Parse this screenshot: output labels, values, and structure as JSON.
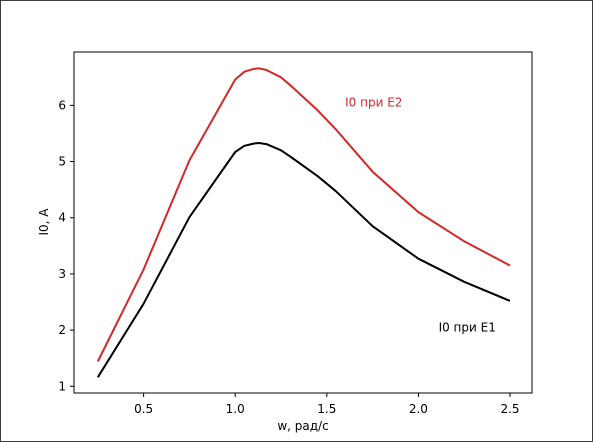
{
  "chart_data": {
    "type": "line",
    "title": "",
    "xlabel": "w, рад/с",
    "ylabel": "I0, A",
    "xlim": [
      0.12,
      2.62
    ],
    "ylim": [
      0.88,
      6.95
    ],
    "xticks": [
      0.5,
      1.0,
      1.5,
      2.0,
      2.5
    ],
    "xtick_labels": [
      "0.5",
      "1.0",
      "1.5",
      "2.0",
      "2.5"
    ],
    "yticks": [
      1,
      2,
      3,
      4,
      5,
      6
    ],
    "ytick_labels": [
      "1",
      "2",
      "3",
      "4",
      "5",
      "6"
    ],
    "grid": false,
    "series": [
      {
        "name": "I0 при E1",
        "color": "#000000",
        "label_at": [
          2.11,
          2.05
        ],
        "x": [
          0.25,
          0.5,
          0.75,
          1.0,
          1.05,
          1.1,
          1.13,
          1.17,
          1.25,
          1.3,
          1.45,
          1.55,
          1.75,
          2.0,
          2.25,
          2.5
        ],
        "y": [
          1.16,
          2.47,
          4.01,
          5.17,
          5.28,
          5.32,
          5.33,
          5.31,
          5.2,
          5.09,
          4.74,
          4.47,
          3.85,
          3.27,
          2.86,
          2.52
        ]
      },
      {
        "name": "I0 при E2",
        "color": "#d62728",
        "label_at": [
          1.6,
          6.05
        ],
        "x": [
          0.25,
          0.5,
          0.75,
          1.0,
          1.05,
          1.1,
          1.13,
          1.17,
          1.25,
          1.3,
          1.45,
          1.55,
          1.75,
          2.0,
          2.25,
          2.5
        ],
        "y": [
          1.44,
          3.08,
          5.02,
          6.46,
          6.6,
          6.65,
          6.66,
          6.63,
          6.5,
          6.36,
          5.91,
          5.57,
          4.82,
          4.1,
          3.58,
          3.15
        ]
      }
    ]
  }
}
